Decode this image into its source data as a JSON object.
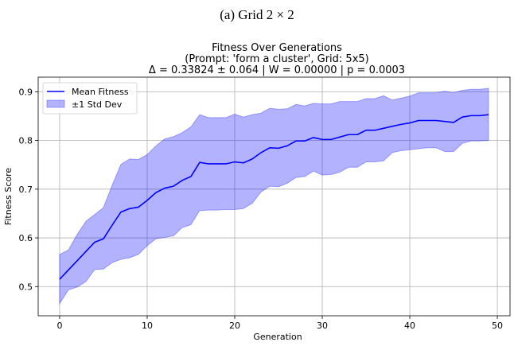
{
  "figure": {
    "caption": "(a) Grid 2 × 2"
  },
  "chart_data": {
    "type": "line",
    "title_lines": [
      "Fitness Over Generations",
      "(Prompt: 'form a cluster', Grid: 5x5)",
      "Δ = 0.33824 ± 0.064 | W = 0.00000 | p = 0.0003"
    ],
    "xlabel": "Generation",
    "ylabel": "Fitness Score",
    "xlim": [
      -2.45,
      51.45
    ],
    "ylim": [
      0.44,
      0.93
    ],
    "xticks": [
      0,
      10,
      20,
      30,
      40,
      50
    ],
    "yticks": [
      0.5,
      0.6,
      0.7,
      0.8,
      0.9
    ],
    "grid": true,
    "legend_position": "top-left",
    "series": [
      {
        "name": "Mean Fitness",
        "color": "#0000ff",
        "x": [
          0,
          1,
          2,
          3,
          4,
          5,
          6,
          7,
          8,
          9,
          10,
          11,
          12,
          13,
          14,
          15,
          16,
          17,
          18,
          19,
          20,
          21,
          22,
          23,
          24,
          25,
          26,
          27,
          28,
          29,
          30,
          31,
          32,
          33,
          34,
          35,
          36,
          37,
          38,
          39,
          40,
          41,
          42,
          43,
          44,
          45,
          46,
          47,
          48,
          49
        ],
        "values": [
          0.515,
          0.534,
          0.553,
          0.572,
          0.591,
          0.598,
          0.626,
          0.653,
          0.66,
          0.663,
          0.677,
          0.693,
          0.702,
          0.706,
          0.718,
          0.726,
          0.755,
          0.752,
          0.752,
          0.752,
          0.756,
          0.754,
          0.762,
          0.775,
          0.785,
          0.784,
          0.789,
          0.799,
          0.799,
          0.806,
          0.802,
          0.802,
          0.807,
          0.812,
          0.812,
          0.821,
          0.821,
          0.825,
          0.829,
          0.833,
          0.836,
          0.841,
          0.841,
          0.841,
          0.839,
          0.837,
          0.848,
          0.851,
          0.851,
          0.853
        ]
      }
    ],
    "band": {
      "name": "±1 Std Dev",
      "color": "#0000ff",
      "opacity": 0.3,
      "lower": [
        0.465,
        0.493,
        0.499,
        0.51,
        0.535,
        0.536,
        0.549,
        0.556,
        0.559,
        0.566,
        0.584,
        0.598,
        0.601,
        0.604,
        0.621,
        0.627,
        0.656,
        0.657,
        0.657,
        0.658,
        0.658,
        0.66,
        0.671,
        0.694,
        0.706,
        0.705,
        0.712,
        0.724,
        0.726,
        0.737,
        0.729,
        0.73,
        0.735,
        0.745,
        0.745,
        0.756,
        0.756,
        0.758,
        0.775,
        0.779,
        0.781,
        0.783,
        0.785,
        0.785,
        0.777,
        0.777,
        0.794,
        0.799,
        0.799,
        0.8
      ],
      "upper": [
        0.566,
        0.575,
        0.607,
        0.634,
        0.648,
        0.662,
        0.708,
        0.751,
        0.762,
        0.761,
        0.771,
        0.789,
        0.803,
        0.808,
        0.816,
        0.828,
        0.853,
        0.847,
        0.847,
        0.847,
        0.854,
        0.848,
        0.853,
        0.856,
        0.866,
        0.864,
        0.865,
        0.874,
        0.871,
        0.876,
        0.875,
        0.875,
        0.88,
        0.88,
        0.88,
        0.886,
        0.886,
        0.892,
        0.883,
        0.887,
        0.891,
        0.898,
        0.898,
        0.898,
        0.901,
        0.898,
        0.903,
        0.905,
        0.905,
        0.907
      ]
    }
  }
}
